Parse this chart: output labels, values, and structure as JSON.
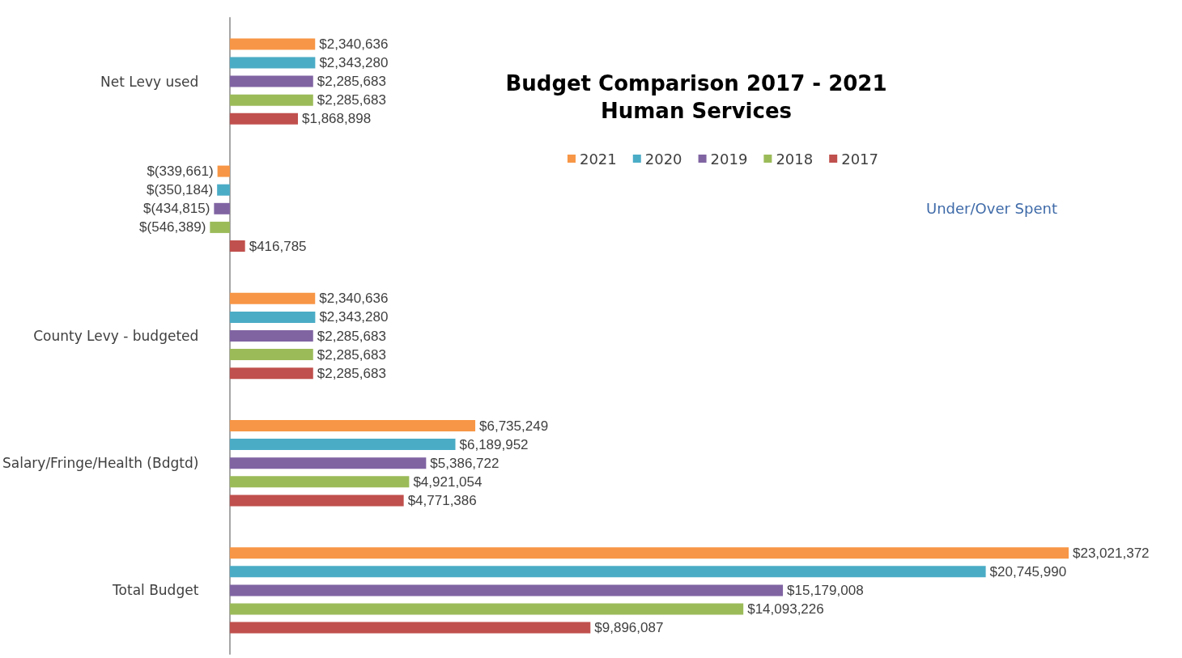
{
  "chart_data": {
    "type": "bar",
    "orientation": "horizontal",
    "title": "Budget Comparison 2017 - 2021",
    "subtitle": "Human Services",
    "categories": [
      "Net Levy used",
      "Under/Over Spent",
      "County Levy - budgeted",
      "Salary/Fringe/Health (Bdgtd)",
      "Total Budget"
    ],
    "series": [
      {
        "name": "2021",
        "color": "#f79646",
        "values": [
          2340636,
          -339661,
          2340636,
          6735249,
          23021372
        ],
        "value_labels": [
          "$2,340,636",
          "$(339,661)",
          "$2,340,636",
          "$6,735,249",
          "$23,021,372"
        ]
      },
      {
        "name": "2020",
        "color": "#4bacc6",
        "values": [
          2343280,
          -350184,
          2343280,
          6189952,
          20745990
        ],
        "value_labels": [
          "$2,343,280",
          "$(350,184)",
          "$2,343,280",
          "$6,189,952",
          "$20,745,990"
        ]
      },
      {
        "name": "2019",
        "color": "#8064a2",
        "values": [
          2285683,
          -434815,
          2285683,
          5386722,
          15179008
        ],
        "value_labels": [
          "$2,285,683",
          "$(434,815)",
          "$2,285,683",
          "$5,386,722",
          "$15,179,008"
        ]
      },
      {
        "name": "2018",
        "color": "#9bbb59",
        "values": [
          2285683,
          -546389,
          2285683,
          4921054,
          14093226
        ],
        "value_labels": [
          "$2,285,683",
          "$(546,389)",
          "$2,285,683",
          "$4,921,054",
          "$14,093,226"
        ]
      },
      {
        "name": "2017",
        "color": "#c0504d",
        "values": [
          1868898,
          416785,
          2285683,
          4771386,
          9896087
        ],
        "value_labels": [
          "$1,868,898",
          "$416,785",
          "$2,285,683",
          "$4,771,386",
          "$9,896,087"
        ]
      }
    ],
    "legend": "top right"
  }
}
